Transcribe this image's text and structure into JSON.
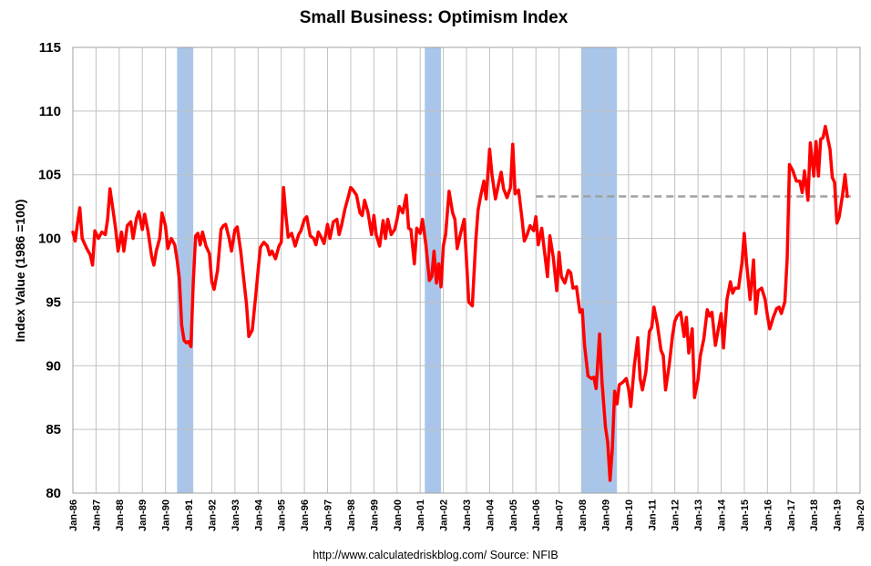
{
  "chart_data": {
    "type": "line",
    "title": "Small Business: Optimism Index",
    "ylabel": "Index Value (1986 =100)",
    "xlabel": "",
    "source": "http://www.calculatedriskblog.com/  Source: NFIB",
    "ylim": [
      80,
      115
    ],
    "yticks": [
      80,
      85,
      90,
      95,
      100,
      105,
      110,
      115
    ],
    "xlim": [
      1986,
      2020
    ],
    "xtick_labels": [
      "Jan-86",
      "Jan-87",
      "Jan-88",
      "Jan-89",
      "Jan-90",
      "Jan-91",
      "Jan-92",
      "Jan-93",
      "Jan-94",
      "Jan-95",
      "Jan-96",
      "Jan-97",
      "Jan-98",
      "Jan-99",
      "Jan-00",
      "Jan-01",
      "Jan-02",
      "Jan-03",
      "Jan-04",
      "Jan-05",
      "Jan-06",
      "Jan-07",
      "Jan-08",
      "Jan-09",
      "Jan-10",
      "Jan-11",
      "Jan-12",
      "Jan-13",
      "Jan-14",
      "Jan-15",
      "Jan-16",
      "Jan-17",
      "Jan-18",
      "Jan-19",
      "Jan-20"
    ],
    "grid": true,
    "colors": {
      "line": "#ff0000",
      "recession": "#a9c6ea",
      "reference": "#a0a0a0",
      "grid": "#c0c0c0"
    },
    "recessions": [
      [
        1990.5,
        1991.2
      ],
      [
        2001.2,
        2001.9
      ],
      [
        2007.95,
        2009.5
      ]
    ],
    "reference_line": {
      "value": 103.3,
      "from": 2006.0,
      "to": 2019.6
    },
    "series": [
      {
        "points": [
          [
            1986.0,
            100.5
          ],
          [
            1986.1,
            99.8
          ],
          [
            1986.2,
            101.2
          ],
          [
            1986.3,
            102.4
          ],
          [
            1986.4,
            100.0
          ],
          [
            1986.6,
            99.2
          ],
          [
            1986.75,
            98.7
          ],
          [
            1986.85,
            97.9
          ],
          [
            1986.95,
            100.6
          ],
          [
            1987.1,
            100.0
          ],
          [
            1987.25,
            100.5
          ],
          [
            1987.4,
            100.3
          ],
          [
            1987.5,
            101.5
          ],
          [
            1987.6,
            103.9
          ],
          [
            1987.75,
            102.0
          ],
          [
            1987.85,
            100.7
          ],
          [
            1987.95,
            99.0
          ],
          [
            1988.1,
            100.5
          ],
          [
            1988.2,
            99.0
          ],
          [
            1988.35,
            101.0
          ],
          [
            1988.5,
            101.3
          ],
          [
            1988.6,
            100.0
          ],
          [
            1988.75,
            101.6
          ],
          [
            1988.85,
            102.1
          ],
          [
            1989.0,
            100.7
          ],
          [
            1989.1,
            101.9
          ],
          [
            1989.25,
            100.5
          ],
          [
            1989.4,
            98.6
          ],
          [
            1989.5,
            97.9
          ],
          [
            1989.6,
            99.0
          ],
          [
            1989.75,
            100.0
          ],
          [
            1989.85,
            102.0
          ],
          [
            1990.0,
            101.0
          ],
          [
            1990.1,
            99.2
          ],
          [
            1990.25,
            100.0
          ],
          [
            1990.4,
            99.5
          ],
          [
            1990.5,
            98.3
          ],
          [
            1990.6,
            96.8
          ],
          [
            1990.7,
            93.2
          ],
          [
            1990.8,
            92.0
          ],
          [
            1990.9,
            91.8
          ],
          [
            1991.0,
            91.9
          ],
          [
            1991.1,
            91.5
          ],
          [
            1991.2,
            96.5
          ],
          [
            1991.3,
            100.2
          ],
          [
            1991.4,
            100.4
          ],
          [
            1991.5,
            99.5
          ],
          [
            1991.6,
            100.5
          ],
          [
            1991.75,
            99.4
          ],
          [
            1991.9,
            98.8
          ],
          [
            1992.0,
            96.6
          ],
          [
            1992.1,
            96.0
          ],
          [
            1992.25,
            97.5
          ],
          [
            1992.4,
            100.7
          ],
          [
            1992.5,
            101.0
          ],
          [
            1992.6,
            101.1
          ],
          [
            1992.75,
            100.0
          ],
          [
            1992.85,
            99.0
          ],
          [
            1993.0,
            100.7
          ],
          [
            1993.1,
            100.9
          ],
          [
            1993.25,
            99.0
          ],
          [
            1993.4,
            96.5
          ],
          [
            1993.5,
            94.8
          ],
          [
            1993.6,
            92.3
          ],
          [
            1993.75,
            92.8
          ],
          [
            1993.9,
            95.6
          ],
          [
            1994.0,
            97.5
          ],
          [
            1994.1,
            99.3
          ],
          [
            1994.25,
            99.7
          ],
          [
            1994.4,
            99.4
          ],
          [
            1994.5,
            98.7
          ],
          [
            1994.6,
            99.0
          ],
          [
            1994.75,
            98.4
          ],
          [
            1994.9,
            99.4
          ],
          [
            1995.0,
            99.7
          ],
          [
            1995.1,
            104.0
          ],
          [
            1995.2,
            101.8
          ],
          [
            1995.3,
            100.1
          ],
          [
            1995.45,
            100.4
          ],
          [
            1995.6,
            99.4
          ],
          [
            1995.75,
            100.3
          ],
          [
            1995.85,
            100.6
          ],
          [
            1996.0,
            101.5
          ],
          [
            1996.1,
            101.7
          ],
          [
            1996.25,
            100.2
          ],
          [
            1996.4,
            100.0
          ],
          [
            1996.5,
            99.5
          ],
          [
            1996.6,
            100.5
          ],
          [
            1996.75,
            100.0
          ],
          [
            1996.85,
            99.6
          ],
          [
            1997.0,
            101.1
          ],
          [
            1997.1,
            100.0
          ],
          [
            1997.25,
            101.3
          ],
          [
            1997.4,
            101.5
          ],
          [
            1997.5,
            100.3
          ],
          [
            1997.6,
            101.0
          ],
          [
            1997.75,
            102.3
          ],
          [
            1997.9,
            103.3
          ],
          [
            1998.0,
            104.0
          ],
          [
            1998.1,
            103.8
          ],
          [
            1998.25,
            103.4
          ],
          [
            1998.4,
            102.0
          ],
          [
            1998.5,
            101.8
          ],
          [
            1998.6,
            103.0
          ],
          [
            1998.75,
            102.0
          ],
          [
            1998.9,
            100.3
          ],
          [
            1999.0,
            101.8
          ],
          [
            1999.1,
            100.3
          ],
          [
            1999.25,
            99.4
          ],
          [
            1999.4,
            101.4
          ],
          [
            1999.5,
            100.0
          ],
          [
            1999.6,
            101.5
          ],
          [
            1999.75,
            100.3
          ],
          [
            1999.9,
            100.7
          ],
          [
            2000.0,
            101.5
          ],
          [
            2000.1,
            102.5
          ],
          [
            2000.25,
            102.0
          ],
          [
            2000.4,
            103.4
          ],
          [
            2000.5,
            100.8
          ],
          [
            2000.6,
            100.7
          ],
          [
            2000.75,
            98.0
          ],
          [
            2000.85,
            100.8
          ],
          [
            2001.0,
            100.4
          ],
          [
            2001.1,
            101.5
          ],
          [
            2001.25,
            99.5
          ],
          [
            2001.4,
            96.7
          ],
          [
            2001.5,
            97.0
          ],
          [
            2001.6,
            99.0
          ],
          [
            2001.7,
            96.5
          ],
          [
            2001.8,
            98.0
          ],
          [
            2001.9,
            96.2
          ],
          [
            2002.0,
            99.4
          ],
          [
            2002.1,
            100.3
          ],
          [
            2002.25,
            103.7
          ],
          [
            2002.4,
            102.0
          ],
          [
            2002.5,
            101.5
          ],
          [
            2002.6,
            99.2
          ],
          [
            2002.75,
            100.4
          ],
          [
            2002.9,
            101.5
          ],
          [
            2003.0,
            98.3
          ],
          [
            2003.1,
            95.0
          ],
          [
            2003.25,
            94.7
          ],
          [
            2003.4,
            99.8
          ],
          [
            2003.5,
            102.2
          ],
          [
            2003.6,
            103.2
          ],
          [
            2003.75,
            104.5
          ],
          [
            2003.85,
            103.1
          ],
          [
            2004.0,
            107.0
          ],
          [
            2004.1,
            105.0
          ],
          [
            2004.25,
            103.1
          ],
          [
            2004.4,
            104.4
          ],
          [
            2004.5,
            105.2
          ],
          [
            2004.6,
            103.9
          ],
          [
            2004.75,
            103.2
          ],
          [
            2004.9,
            104.0
          ],
          [
            2005.0,
            107.4
          ],
          [
            2005.1,
            103.5
          ],
          [
            2005.25,
            103.8
          ],
          [
            2005.4,
            101.5
          ],
          [
            2005.5,
            99.8
          ],
          [
            2005.6,
            100.2
          ],
          [
            2005.75,
            101.0
          ],
          [
            2005.9,
            100.6
          ],
          [
            2006.0,
            101.7
          ],
          [
            2006.1,
            99.5
          ],
          [
            2006.25,
            100.8
          ],
          [
            2006.4,
            98.5
          ],
          [
            2006.5,
            97.0
          ],
          [
            2006.6,
            100.2
          ],
          [
            2006.75,
            98.5
          ],
          [
            2006.9,
            95.9
          ],
          [
            2007.0,
            98.9
          ],
          [
            2007.1,
            97.0
          ],
          [
            2007.25,
            96.5
          ],
          [
            2007.4,
            97.5
          ],
          [
            2007.5,
            97.3
          ],
          [
            2007.6,
            96.1
          ],
          [
            2007.75,
            96.2
          ],
          [
            2007.9,
            94.2
          ],
          [
            2008.0,
            94.4
          ],
          [
            2008.1,
            91.6
          ],
          [
            2008.25,
            89.2
          ],
          [
            2008.4,
            89.0
          ],
          [
            2008.5,
            89.1
          ],
          [
            2008.6,
            88.2
          ],
          [
            2008.75,
            92.5
          ],
          [
            2008.85,
            88.8
          ],
          [
            2009.0,
            85.2
          ],
          [
            2009.1,
            84.0
          ],
          [
            2009.2,
            81.0
          ],
          [
            2009.3,
            83.5
          ],
          [
            2009.4,
            88.0
          ],
          [
            2009.5,
            87.0
          ],
          [
            2009.6,
            88.5
          ],
          [
            2009.75,
            88.7
          ],
          [
            2009.9,
            89.0
          ],
          [
            2010.0,
            88.2
          ],
          [
            2010.1,
            86.8
          ],
          [
            2010.25,
            90.0
          ],
          [
            2010.4,
            92.2
          ],
          [
            2010.5,
            89.0
          ],
          [
            2010.6,
            88.1
          ],
          [
            2010.75,
            89.5
          ],
          [
            2010.9,
            92.7
          ],
          [
            2011.0,
            93.0
          ],
          [
            2011.1,
            94.6
          ],
          [
            2011.25,
            93.2
          ],
          [
            2011.4,
            91.2
          ],
          [
            2011.5,
            90.8
          ],
          [
            2011.6,
            88.1
          ],
          [
            2011.75,
            90.0
          ],
          [
            2011.9,
            92.4
          ],
          [
            2012.0,
            93.5
          ],
          [
            2012.1,
            93.9
          ],
          [
            2012.25,
            94.2
          ],
          [
            2012.4,
            92.3
          ],
          [
            2012.5,
            93.8
          ],
          [
            2012.6,
            91.0
          ],
          [
            2012.75,
            92.9
          ],
          [
            2012.85,
            87.5
          ],
          [
            2013.0,
            88.9
          ],
          [
            2013.1,
            90.8
          ],
          [
            2013.25,
            92.1
          ],
          [
            2013.4,
            94.4
          ],
          [
            2013.5,
            93.9
          ],
          [
            2013.6,
            94.2
          ],
          [
            2013.75,
            91.6
          ],
          [
            2013.9,
            93.1
          ],
          [
            2014.0,
            94.1
          ],
          [
            2014.1,
            91.4
          ],
          [
            2014.25,
            95.2
          ],
          [
            2014.4,
            96.6
          ],
          [
            2014.5,
            95.7
          ],
          [
            2014.6,
            96.1
          ],
          [
            2014.75,
            96.1
          ],
          [
            2014.9,
            98.1
          ],
          [
            2015.0,
            100.4
          ],
          [
            2015.1,
            98.0
          ],
          [
            2015.25,
            95.2
          ],
          [
            2015.4,
            98.3
          ],
          [
            2015.5,
            94.1
          ],
          [
            2015.6,
            95.9
          ],
          [
            2015.75,
            96.1
          ],
          [
            2015.9,
            95.2
          ],
          [
            2016.0,
            93.9
          ],
          [
            2016.1,
            92.9
          ],
          [
            2016.25,
            93.8
          ],
          [
            2016.4,
            94.5
          ],
          [
            2016.5,
            94.6
          ],
          [
            2016.6,
            94.1
          ],
          [
            2016.75,
            95.0
          ],
          [
            2016.85,
            98.4
          ],
          [
            2016.95,
            105.8
          ],
          [
            2017.1,
            105.3
          ],
          [
            2017.25,
            104.5
          ],
          [
            2017.4,
            104.5
          ],
          [
            2017.5,
            103.6
          ],
          [
            2017.6,
            105.3
          ],
          [
            2017.75,
            103.0
          ],
          [
            2017.85,
            107.5
          ],
          [
            2018.0,
            104.9
          ],
          [
            2018.1,
            107.6
          ],
          [
            2018.2,
            104.9
          ],
          [
            2018.3,
            107.8
          ],
          [
            2018.4,
            107.9
          ],
          [
            2018.5,
            108.8
          ],
          [
            2018.6,
            107.9
          ],
          [
            2018.7,
            107.0
          ],
          [
            2018.8,
            104.8
          ],
          [
            2018.9,
            104.4
          ],
          [
            2019.0,
            101.2
          ],
          [
            2019.1,
            101.7
          ],
          [
            2019.25,
            103.5
          ],
          [
            2019.35,
            105.0
          ],
          [
            2019.45,
            103.3
          ]
        ]
      }
    ]
  }
}
